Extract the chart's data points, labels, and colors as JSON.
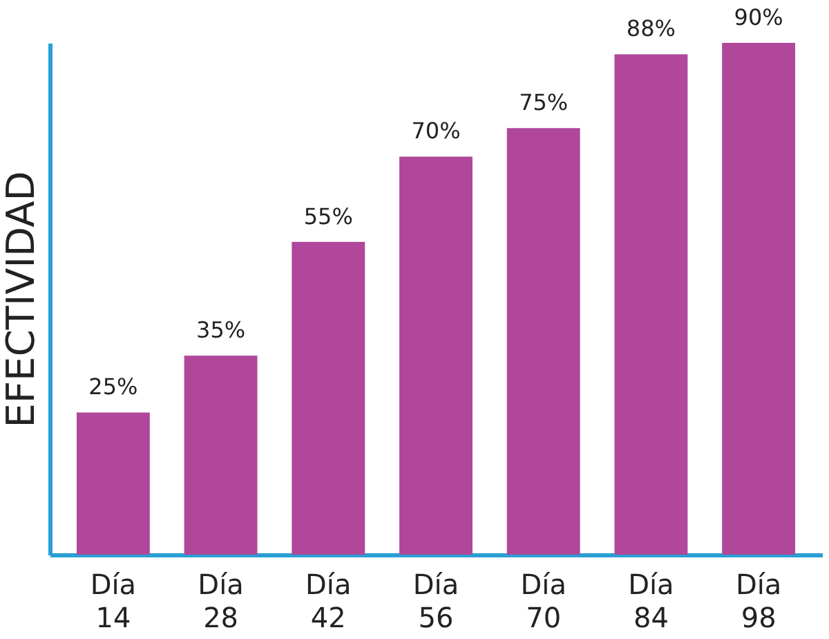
{
  "chart_data": {
    "type": "bar",
    "ylabel": "EFECTIVIDAD",
    "categories": [
      "Día 14",
      "Día 28",
      "Día 42",
      "Día 56",
      "Día 70",
      "Día 84",
      "Día 98"
    ],
    "values": [
      25,
      35,
      55,
      70,
      75,
      88,
      90
    ],
    "value_labels": [
      "25%",
      "35%",
      "55%",
      "70%",
      "75%",
      "88%",
      "90%"
    ],
    "color": "#b0479a",
    "grid": false
  }
}
